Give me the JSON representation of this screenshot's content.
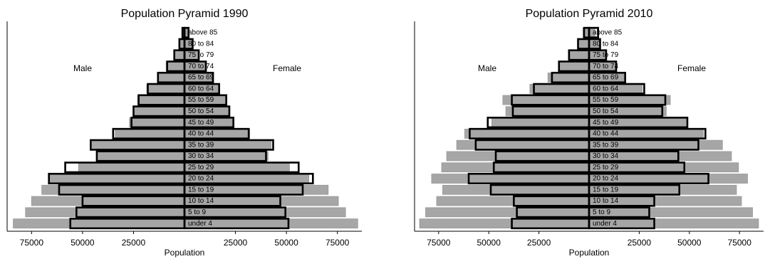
{
  "chart_data": [
    {
      "type": "pyramid",
      "title": "Population Pyramid 1990",
      "xlabel": "Population",
      "annotations": [
        "Male",
        "Female"
      ],
      "categories": [
        "under 4",
        "5 to 9",
        "10 to 14",
        "15 to 19",
        "20 to 24",
        "25 to 29",
        "30 to 34",
        "35 to 39",
        "40 to 44",
        "45 to 49",
        "50 to 54",
        "55 to 59",
        "60 to 64",
        "65 to 69",
        "70 to 74",
        "75 to 79",
        "80 to 84",
        "above 85"
      ],
      "xlim": [
        -87000,
        87000
      ],
      "xticks": [
        {
          "value": -75000,
          "label": "75000"
        },
        {
          "value": -50000,
          "label": "50000"
        },
        {
          "value": -25000,
          "label": "25000"
        },
        25000,
        50000,
        75000
      ],
      "series": [
        {
          "fill": "#a6a6a6",
          "edge": "#999999",
          "male": [
            84000,
            78000,
            75000,
            70000,
            66000,
            52000,
            43000,
            46000,
            34000,
            27000,
            25000,
            23000,
            18500,
            13000,
            9000,
            5000,
            2500,
            1000
          ],
          "female": [
            85000,
            79000,
            75500,
            70500,
            61000,
            51500,
            41000,
            42500,
            32000,
            23500,
            21500,
            20000,
            16500,
            13500,
            10000,
            7000,
            4000,
            2000
          ]
        },
        {
          "fill": "none",
          "edge": "#000000",
          "male": [
            56000,
            53000,
            50000,
            61500,
            66500,
            58500,
            43000,
            46000,
            35000,
            26000,
            25000,
            22500,
            18000,
            13000,
            8500,
            5000,
            2500,
            1000
          ],
          "female": [
            51000,
            49500,
            47000,
            58000,
            63000,
            56000,
            40000,
            43500,
            31500,
            24000,
            22000,
            20500,
            17000,
            14000,
            10500,
            7000,
            4000,
            2000
          ]
        }
      ]
    },
    {
      "type": "pyramid",
      "title": "Population Pyramid 2010",
      "xlabel": "Population",
      "annotations": [
        "Male",
        "Female"
      ],
      "categories": [
        "under 4",
        "5 to 9",
        "10 to 14",
        "15 to 19",
        "20 to 24",
        "25 to 29",
        "30 to 34",
        "35 to 39",
        "40 to 44",
        "45 to 49",
        "50 to 54",
        "55 to 59",
        "60 to 64",
        "65 to 69",
        "70 to 74",
        "75 to 79",
        "80 to 84",
        "above 85"
      ],
      "xlim": [
        -87000,
        87000
      ],
      "xticks": [
        {
          "value": -75000,
          "label": "75000"
        },
        {
          "value": -50000,
          "label": "50000"
        },
        {
          "value": -25000,
          "label": "25000"
        },
        25000,
        50000,
        75000
      ],
      "series": [
        {
          "fill": "#a6a6a6",
          "edge": "#999999",
          "male": [
            84500,
            81500,
            76000,
            73000,
            78500,
            73500,
            71000,
            66000,
            62000,
            48500,
            41500,
            43000,
            29500,
            20500,
            15000,
            9500,
            5500,
            3000
          ],
          "female": [
            84500,
            81500,
            76000,
            73500,
            79000,
            74500,
            71000,
            66500,
            57000,
            49000,
            38500,
            40500,
            26500,
            18000,
            13500,
            8500,
            5000,
            3000
          ]
        },
        {
          "fill": "none",
          "edge": "#000000",
          "male": [
            38500,
            36000,
            37500,
            49000,
            60000,
            47500,
            46500,
            56500,
            59500,
            50500,
            38000,
            38500,
            27500,
            18500,
            15000,
            10000,
            5500,
            2500
          ],
          "female": [
            32500,
            30000,
            32500,
            45000,
            59500,
            47500,
            44500,
            54500,
            58000,
            49000,
            36500,
            38000,
            27500,
            18000,
            13500,
            8500,
            5500,
            4500
          ]
        }
      ]
    }
  ]
}
